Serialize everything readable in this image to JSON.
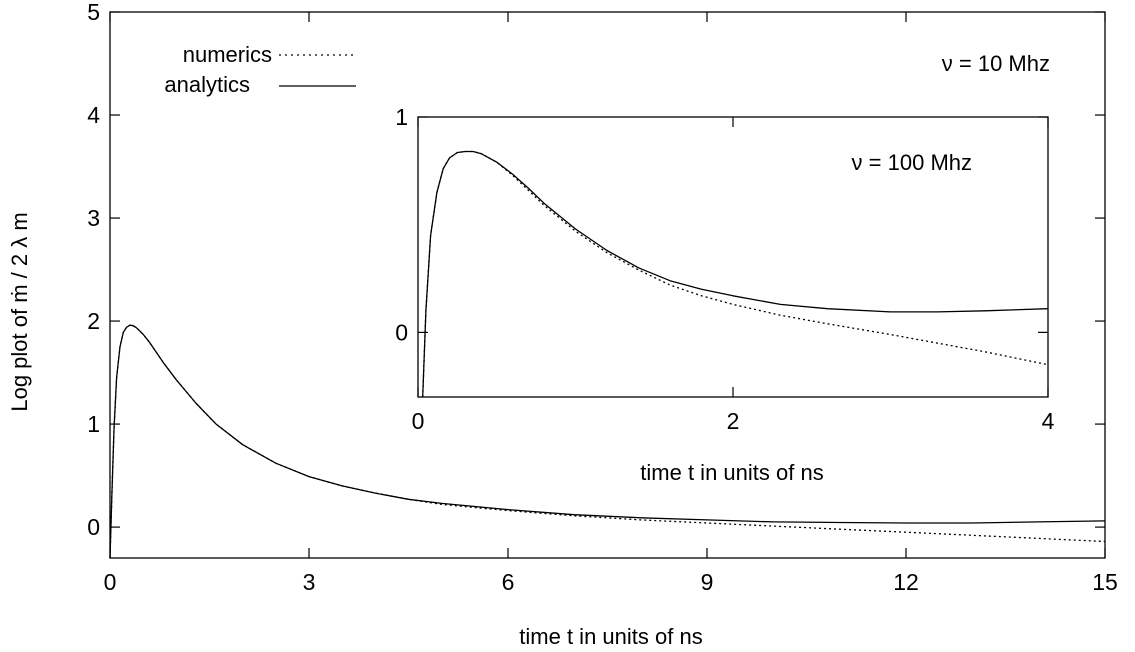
{
  "chart_data": [
    {
      "type": "line",
      "ylabel": "Log plot of ṁ / 2 λ m",
      "xlabel": "time t in units of ns",
      "annotation": "ν = 10 Mhz",
      "xlim": [
        0,
        15
      ],
      "ylim": [
        -0.3,
        5
      ],
      "xticks": [
        "0",
        "3",
        "6",
        "9",
        "12",
        "15"
      ],
      "yticks": [
        "0",
        "1",
        "2",
        "3",
        "4",
        "5"
      ],
      "grid": false,
      "legend_position": "top-left",
      "series": [
        {
          "name": "numerics",
          "style": "dotted",
          "x": [
            0.0,
            0.03,
            0.06,
            0.1,
            0.15,
            0.2,
            0.25,
            0.3,
            0.35,
            0.4,
            0.5,
            0.6,
            0.8,
            1.0,
            1.3,
            1.6,
            2.0,
            2.5,
            3.0,
            3.5,
            4.0,
            4.5,
            5.0,
            6.0,
            7.0,
            8.0,
            9.0,
            10.0,
            11.0,
            12.0,
            13.0,
            14.0,
            15.0
          ],
          "y": [
            -0.3,
            0.35,
            0.95,
            1.45,
            1.75,
            1.89,
            1.94,
            1.96,
            1.955,
            1.935,
            1.87,
            1.79,
            1.6,
            1.43,
            1.2,
            1.0,
            0.8,
            0.62,
            0.49,
            0.4,
            0.33,
            0.27,
            0.22,
            0.16,
            0.11,
            0.07,
            0.04,
            0.01,
            -0.02,
            -0.05,
            -0.08,
            -0.11,
            -0.14
          ]
        },
        {
          "name": "analytics",
          "style": "solid",
          "x": [
            0.0,
            0.03,
            0.06,
            0.1,
            0.15,
            0.2,
            0.25,
            0.3,
            0.35,
            0.4,
            0.5,
            0.6,
            0.8,
            1.0,
            1.3,
            1.6,
            2.0,
            2.5,
            3.0,
            3.5,
            4.0,
            4.5,
            5.0,
            6.0,
            7.0,
            8.0,
            9.0,
            10.0,
            11.0,
            12.0,
            13.0,
            14.0,
            15.0
          ],
          "y": [
            -0.3,
            0.35,
            0.95,
            1.45,
            1.75,
            1.89,
            1.94,
            1.96,
            1.955,
            1.935,
            1.87,
            1.79,
            1.6,
            1.43,
            1.2,
            1.0,
            0.8,
            0.62,
            0.49,
            0.4,
            0.33,
            0.27,
            0.23,
            0.17,
            0.12,
            0.09,
            0.07,
            0.05,
            0.045,
            0.04,
            0.04,
            0.05,
            0.06
          ]
        }
      ]
    },
    {
      "type": "line",
      "xlabel": "time t in units of ns",
      "annotation": "ν = 100 Mhz",
      "xlim": [
        0,
        4
      ],
      "ylim": [
        -0.3,
        1
      ],
      "xticks": [
        "0",
        "2",
        "4"
      ],
      "yticks": [
        "0",
        "1"
      ],
      "grid": false,
      "series": [
        {
          "name": "numerics",
          "style": "dotted",
          "x": [
            0.03,
            0.05,
            0.08,
            0.12,
            0.16,
            0.2,
            0.25,
            0.3,
            0.35,
            0.4,
            0.5,
            0.6,
            0.7,
            0.8,
            1.0,
            1.2,
            1.4,
            1.6,
            1.8,
            2.0,
            2.3,
            2.6,
            3.0,
            3.3,
            3.6,
            4.0
          ],
          "y": [
            -0.3,
            0.1,
            0.45,
            0.65,
            0.76,
            0.81,
            0.835,
            0.84,
            0.84,
            0.83,
            0.79,
            0.73,
            0.66,
            0.59,
            0.47,
            0.37,
            0.29,
            0.22,
            0.17,
            0.13,
            0.08,
            0.04,
            -0.01,
            -0.05,
            -0.09,
            -0.15
          ]
        },
        {
          "name": "analytics",
          "style": "solid",
          "x": [
            0.03,
            0.05,
            0.08,
            0.12,
            0.16,
            0.2,
            0.25,
            0.3,
            0.35,
            0.4,
            0.5,
            0.6,
            0.7,
            0.8,
            1.0,
            1.2,
            1.4,
            1.6,
            1.8,
            2.0,
            2.3,
            2.6,
            3.0,
            3.3,
            3.6,
            4.0
          ],
          "y": [
            -0.3,
            0.1,
            0.45,
            0.65,
            0.76,
            0.81,
            0.835,
            0.84,
            0.84,
            0.83,
            0.79,
            0.735,
            0.67,
            0.6,
            0.48,
            0.38,
            0.3,
            0.24,
            0.2,
            0.17,
            0.13,
            0.11,
            0.095,
            0.095,
            0.1,
            0.11
          ]
        }
      ]
    }
  ]
}
